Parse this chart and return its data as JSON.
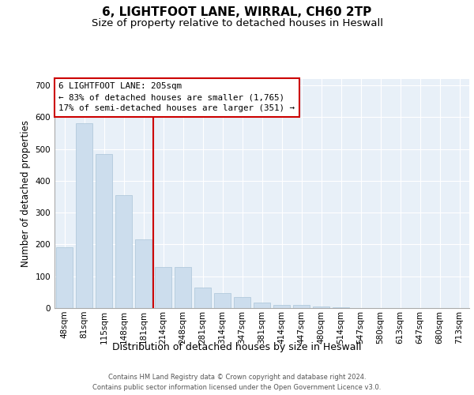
{
  "title1": "6, LIGHTFOOT LANE, WIRRAL, CH60 2TP",
  "title2": "Size of property relative to detached houses in Heswall",
  "xlabel": "Distribution of detached houses by size in Heswall",
  "ylabel": "Number of detached properties",
  "categories": [
    "48sqm",
    "81sqm",
    "115sqm",
    "148sqm",
    "181sqm",
    "214sqm",
    "248sqm",
    "281sqm",
    "314sqm",
    "347sqm",
    "381sqm",
    "414sqm",
    "447sqm",
    "480sqm",
    "514sqm",
    "547sqm",
    "580sqm",
    "613sqm",
    "647sqm",
    "680sqm",
    "713sqm"
  ],
  "values": [
    190,
    580,
    485,
    355,
    215,
    130,
    130,
    65,
    47,
    35,
    17,
    10,
    10,
    5,
    2,
    0,
    0,
    0,
    0,
    0,
    0
  ],
  "bar_color": "#ccdded",
  "bar_edgecolor": "#aac4d8",
  "vline_color": "#cc0000",
  "vline_x": 4.5,
  "annotation_text": "6 LIGHTFOOT LANE: 205sqm\n← 83% of detached houses are smaller (1,765)\n17% of semi-detached houses are larger (351) →",
  "annotation_box_color": "#ffffff",
  "annotation_box_edgecolor": "#cc0000",
  "ylim": [
    0,
    720
  ],
  "yticks": [
    0,
    100,
    200,
    300,
    400,
    500,
    600,
    700
  ],
  "background_color": "#e8f0f8",
  "fig_background": "#ffffff",
  "footer_text": "Contains HM Land Registry data © Crown copyright and database right 2024.\nContains public sector information licensed under the Open Government Licence v3.0.",
  "title1_fontsize": 11,
  "title2_fontsize": 9.5,
  "xlabel_fontsize": 9,
  "ylabel_fontsize": 8.5,
  "tick_fontsize": 7.5
}
